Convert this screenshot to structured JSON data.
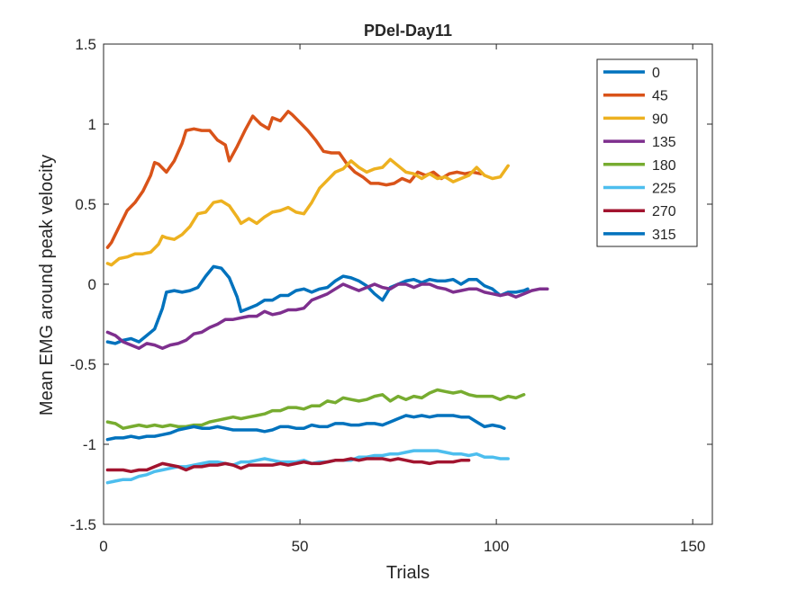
{
  "chart_data": {
    "type": "line",
    "title": "PDel-Day11",
    "xlabel": "Trials",
    "ylabel": "Mean EMG around peak velocity",
    "xlim": [
      0,
      155
    ],
    "ylim": [
      -1.5,
      1.5
    ],
    "xticks": [
      0,
      50,
      100,
      150
    ],
    "xtick_labels": [
      "0",
      "50",
      "100",
      "150"
    ],
    "yticks": [
      -1.5,
      -1,
      -0.5,
      0,
      0.5,
      1,
      1.5
    ],
    "ytick_labels": [
      "-1.5",
      "-1",
      "-0.5",
      "0",
      "0.5",
      "1",
      "1.5"
    ],
    "grid": false,
    "box": true,
    "legend_position": "top-right",
    "series": [
      {
        "name": "0",
        "color": "#0072BD",
        "x": [
          1,
          3,
          5,
          7,
          9,
          11,
          13,
          15,
          16,
          18,
          20,
          22,
          24,
          26,
          28,
          30,
          32,
          34,
          35,
          37,
          39,
          41,
          43,
          45,
          47,
          49,
          51,
          53,
          55,
          57,
          59,
          61,
          63,
          65,
          67,
          69,
          71,
          73,
          75,
          77,
          79,
          81,
          83,
          85,
          87,
          89,
          91,
          93,
          95,
          97,
          99,
          101,
          103,
          105,
          107,
          108
        ],
        "y": [
          -0.36,
          -0.37,
          -0.35,
          -0.34,
          -0.36,
          -0.32,
          -0.28,
          -0.15,
          -0.05,
          -0.04,
          -0.05,
          -0.04,
          -0.02,
          0.05,
          0.11,
          0.1,
          0.04,
          -0.08,
          -0.17,
          -0.15,
          -0.13,
          -0.1,
          -0.1,
          -0.07,
          -0.07,
          -0.04,
          -0.03,
          -0.05,
          -0.03,
          -0.02,
          0.02,
          0.05,
          0.04,
          0.02,
          -0.01,
          -0.06,
          -0.1,
          -0.02,
          0.0,
          0.02,
          0.03,
          0.01,
          0.03,
          0.02,
          0.02,
          0.03,
          0.0,
          0.03,
          0.03,
          -0.01,
          -0.03,
          -0.07,
          -0.05,
          -0.05,
          -0.04,
          -0.03
        ]
      },
      {
        "name": "45",
        "color": "#D95319",
        "x": [
          1,
          2,
          4,
          6,
          8,
          10,
          12,
          13,
          14,
          16,
          18,
          20,
          21,
          23,
          25,
          27,
          29,
          31,
          32,
          34,
          36,
          38,
          40,
          42,
          43,
          45,
          47,
          48,
          50,
          52,
          54,
          56,
          58,
          60,
          62,
          64,
          66,
          68,
          70,
          72,
          74,
          76,
          78,
          80,
          82,
          84,
          86,
          88,
          90,
          92,
          94,
          96
        ],
        "y": [
          0.23,
          0.26,
          0.36,
          0.46,
          0.51,
          0.58,
          0.68,
          0.76,
          0.75,
          0.7,
          0.77,
          0.88,
          0.96,
          0.97,
          0.96,
          0.96,
          0.9,
          0.87,
          0.77,
          0.86,
          0.96,
          1.05,
          1.0,
          0.97,
          1.04,
          1.02,
          1.08,
          1.06,
          1.01,
          0.96,
          0.9,
          0.83,
          0.82,
          0.82,
          0.75,
          0.7,
          0.67,
          0.63,
          0.63,
          0.62,
          0.63,
          0.66,
          0.64,
          0.7,
          0.68,
          0.7,
          0.66,
          0.69,
          0.7,
          0.69,
          0.7,
          0.69
        ]
      },
      {
        "name": "90",
        "color": "#EDB120",
        "x": [
          1,
          2,
          4,
          6,
          8,
          10,
          12,
          14,
          15,
          16,
          18,
          20,
          22,
          24,
          26,
          28,
          30,
          32,
          34,
          35,
          37,
          39,
          41,
          43,
          45,
          47,
          49,
          51,
          53,
          55,
          57,
          59,
          61,
          63,
          65,
          67,
          69,
          71,
          73,
          75,
          77,
          79,
          81,
          83,
          85,
          87,
          89,
          91,
          93,
          95,
          97,
          99,
          101,
          103
        ],
        "y": [
          0.13,
          0.12,
          0.16,
          0.17,
          0.19,
          0.19,
          0.2,
          0.25,
          0.3,
          0.29,
          0.28,
          0.31,
          0.36,
          0.44,
          0.45,
          0.51,
          0.52,
          0.49,
          0.42,
          0.38,
          0.41,
          0.38,
          0.42,
          0.45,
          0.46,
          0.48,
          0.45,
          0.44,
          0.51,
          0.6,
          0.65,
          0.7,
          0.72,
          0.77,
          0.73,
          0.7,
          0.72,
          0.73,
          0.78,
          0.74,
          0.7,
          0.69,
          0.66,
          0.69,
          0.66,
          0.67,
          0.64,
          0.66,
          0.68,
          0.73,
          0.68,
          0.66,
          0.67,
          0.74
        ]
      },
      {
        "name": "135",
        "color": "#7E2F8E",
        "x": [
          1,
          3,
          5,
          7,
          9,
          11,
          13,
          15,
          17,
          19,
          21,
          23,
          25,
          27,
          29,
          31,
          33,
          35,
          37,
          39,
          41,
          43,
          45,
          47,
          49,
          51,
          53,
          55,
          57,
          59,
          61,
          63,
          65,
          67,
          69,
          71,
          73,
          75,
          77,
          79,
          81,
          83,
          85,
          87,
          89,
          91,
          93,
          95,
          97,
          99,
          101,
          103,
          105,
          107,
          109,
          111,
          113
        ],
        "y": [
          -0.3,
          -0.32,
          -0.36,
          -0.38,
          -0.4,
          -0.37,
          -0.38,
          -0.4,
          -0.38,
          -0.37,
          -0.35,
          -0.31,
          -0.3,
          -0.27,
          -0.25,
          -0.22,
          -0.22,
          -0.21,
          -0.2,
          -0.2,
          -0.17,
          -0.19,
          -0.18,
          -0.16,
          -0.16,
          -0.15,
          -0.1,
          -0.08,
          -0.06,
          -0.03,
          0.0,
          -0.02,
          -0.04,
          -0.02,
          0.0,
          -0.02,
          -0.03,
          0.0,
          0.0,
          -0.02,
          0.0,
          0.0,
          -0.02,
          -0.03,
          -0.05,
          -0.04,
          -0.03,
          -0.03,
          -0.05,
          -0.06,
          -0.07,
          -0.06,
          -0.08,
          -0.06,
          -0.04,
          -0.03,
          -0.03
        ]
      },
      {
        "name": "180",
        "color": "#77AC30",
        "x": [
          1,
          3,
          5,
          7,
          9,
          11,
          13,
          15,
          17,
          19,
          21,
          23,
          25,
          27,
          29,
          31,
          33,
          35,
          37,
          39,
          41,
          43,
          45,
          47,
          49,
          51,
          53,
          55,
          57,
          59,
          61,
          63,
          65,
          67,
          69,
          71,
          73,
          75,
          77,
          79,
          81,
          83,
          85,
          87,
          89,
          91,
          93,
          95,
          97,
          99,
          101,
          103,
          105,
          107
        ],
        "y": [
          -0.86,
          -0.87,
          -0.9,
          -0.89,
          -0.88,
          -0.89,
          -0.88,
          -0.89,
          -0.88,
          -0.89,
          -0.89,
          -0.88,
          -0.88,
          -0.86,
          -0.85,
          -0.84,
          -0.83,
          -0.84,
          -0.83,
          -0.82,
          -0.81,
          -0.79,
          -0.79,
          -0.77,
          -0.77,
          -0.78,
          -0.76,
          -0.76,
          -0.73,
          -0.74,
          -0.71,
          -0.72,
          -0.73,
          -0.72,
          -0.7,
          -0.69,
          -0.73,
          -0.7,
          -0.72,
          -0.7,
          -0.71,
          -0.68,
          -0.66,
          -0.67,
          -0.68,
          -0.67,
          -0.69,
          -0.7,
          -0.7,
          -0.7,
          -0.72,
          -0.7,
          -0.71,
          -0.69
        ]
      },
      {
        "name": "225",
        "color": "#4DBEEE",
        "x": [
          1,
          3,
          5,
          7,
          9,
          11,
          13,
          15,
          17,
          19,
          21,
          23,
          25,
          27,
          29,
          31,
          33,
          35,
          37,
          39,
          41,
          43,
          45,
          47,
          49,
          51,
          53,
          55,
          57,
          59,
          61,
          63,
          65,
          67,
          69,
          71,
          73,
          75,
          77,
          79,
          81,
          83,
          85,
          87,
          89,
          91,
          93,
          95,
          97,
          99,
          101,
          103
        ],
        "y": [
          -1.24,
          -1.23,
          -1.22,
          -1.22,
          -1.2,
          -1.19,
          -1.17,
          -1.16,
          -1.15,
          -1.14,
          -1.14,
          -1.13,
          -1.12,
          -1.11,
          -1.11,
          -1.12,
          -1.13,
          -1.11,
          -1.11,
          -1.1,
          -1.09,
          -1.1,
          -1.11,
          -1.11,
          -1.11,
          -1.1,
          -1.12,
          -1.11,
          -1.11,
          -1.1,
          -1.1,
          -1.1,
          -1.08,
          -1.08,
          -1.07,
          -1.07,
          -1.06,
          -1.06,
          -1.05,
          -1.04,
          -1.04,
          -1.04,
          -1.04,
          -1.05,
          -1.06,
          -1.06,
          -1.07,
          -1.06,
          -1.08,
          -1.08,
          -1.09,
          -1.09
        ]
      },
      {
        "name": "270",
        "color": "#A2142F",
        "x": [
          1,
          3,
          5,
          7,
          9,
          11,
          13,
          15,
          17,
          19,
          21,
          23,
          25,
          27,
          29,
          31,
          33,
          35,
          37,
          39,
          41,
          43,
          45,
          47,
          49,
          51,
          53,
          55,
          57,
          59,
          61,
          63,
          65,
          67,
          69,
          71,
          73,
          75,
          77,
          79,
          81,
          83,
          85,
          87,
          89,
          91,
          93
        ],
        "y": [
          -1.16,
          -1.16,
          -1.16,
          -1.17,
          -1.16,
          -1.16,
          -1.14,
          -1.12,
          -1.13,
          -1.14,
          -1.16,
          -1.14,
          -1.14,
          -1.13,
          -1.13,
          -1.12,
          -1.13,
          -1.15,
          -1.13,
          -1.13,
          -1.13,
          -1.13,
          -1.12,
          -1.13,
          -1.12,
          -1.11,
          -1.12,
          -1.12,
          -1.11,
          -1.1,
          -1.1,
          -1.09,
          -1.1,
          -1.09,
          -1.09,
          -1.09,
          -1.1,
          -1.09,
          -1.1,
          -1.11,
          -1.11,
          -1.12,
          -1.11,
          -1.11,
          -1.11,
          -1.1,
          -1.1
        ]
      },
      {
        "name": "315",
        "color": "#0072BD",
        "x": [
          1,
          3,
          5,
          7,
          9,
          11,
          13,
          15,
          17,
          19,
          21,
          23,
          25,
          27,
          29,
          31,
          33,
          35,
          37,
          39,
          41,
          43,
          45,
          47,
          49,
          51,
          53,
          55,
          57,
          59,
          61,
          63,
          65,
          67,
          69,
          71,
          73,
          75,
          77,
          79,
          81,
          83,
          85,
          87,
          89,
          91,
          93,
          95,
          97,
          99,
          101,
          102
        ],
        "y": [
          -0.97,
          -0.96,
          -0.96,
          -0.95,
          -0.96,
          -0.95,
          -0.95,
          -0.94,
          -0.93,
          -0.91,
          -0.9,
          -0.89,
          -0.9,
          -0.9,
          -0.89,
          -0.9,
          -0.91,
          -0.91,
          -0.91,
          -0.91,
          -0.92,
          -0.91,
          -0.89,
          -0.89,
          -0.9,
          -0.9,
          -0.88,
          -0.89,
          -0.89,
          -0.87,
          -0.87,
          -0.88,
          -0.88,
          -0.87,
          -0.87,
          -0.88,
          -0.86,
          -0.84,
          -0.82,
          -0.83,
          -0.82,
          -0.83,
          -0.82,
          -0.82,
          -0.82,
          -0.83,
          -0.83,
          -0.86,
          -0.89,
          -0.88,
          -0.89,
          -0.9
        ]
      }
    ]
  }
}
